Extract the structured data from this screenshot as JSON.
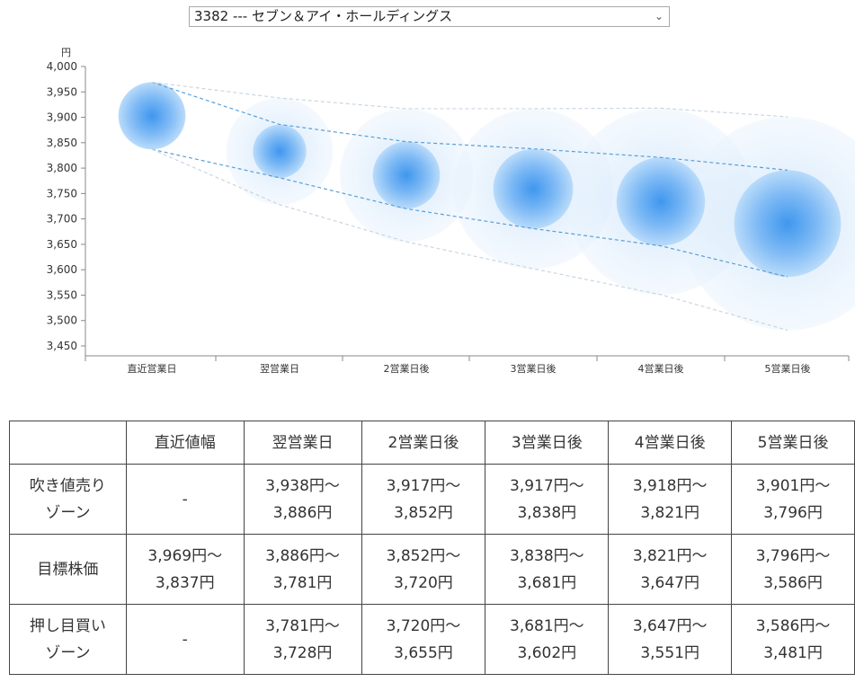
{
  "selector": {
    "selected": "3382 --- セブン＆アイ・ホールディングス"
  },
  "chart_data": {
    "type": "bubble",
    "y_unit": "円",
    "ylim": [
      3450,
      4000
    ],
    "yticks": [
      "4,000",
      "3,950",
      "3,900",
      "3,850",
      "3,800",
      "3,750",
      "3,700",
      "3,650",
      "3,600",
      "3,550",
      "3,500",
      "3,450"
    ],
    "ytick_values": [
      4000,
      3950,
      3900,
      3850,
      3800,
      3750,
      3700,
      3650,
      3600,
      3550,
      3500,
      3450
    ],
    "categories": [
      "直近営業日",
      "翌営業日",
      "2営業日後",
      "3営業日後",
      "4営業日後",
      "5営業日後"
    ],
    "center": [
      3903,
      3833,
      3786,
      3759,
      3734,
      3691
    ],
    "inner_upper": [
      3969,
      3886,
      3852,
      3838,
      3821,
      3796
    ],
    "inner_lower": [
      3837,
      3781,
      3720,
      3681,
      3647,
      3586
    ],
    "outer_upper": [
      3969,
      3938,
      3917,
      3917,
      3918,
      3901
    ],
    "outer_lower": [
      3837,
      3728,
      3655,
      3602,
      3551,
      3481
    ],
    "colors": {
      "bubble_core": "#4a9ff0",
      "bubble_halo": "#d6e9fb",
      "band_line": "#5a9fd6",
      "outer_line": "#c9d6e2"
    }
  },
  "table": {
    "headers": [
      "",
      "直近値幅",
      "翌営業日",
      "2営業日後",
      "3営業日後",
      "4営業日後",
      "5営業日後"
    ],
    "rows": [
      {
        "label": [
          "吹き値売り",
          "ゾーン"
        ],
        "cells": [
          [
            "-"
          ],
          [
            "3,938円～",
            "3,886円"
          ],
          [
            "3,917円～",
            "3,852円"
          ],
          [
            "3,917円～",
            "3,838円"
          ],
          [
            "3,918円～",
            "3,821円"
          ],
          [
            "3,901円～",
            "3,796円"
          ]
        ]
      },
      {
        "label": [
          "目標株価"
        ],
        "cells": [
          [
            "3,969円～",
            "3,837円"
          ],
          [
            "3,886円～",
            "3,781円"
          ],
          [
            "3,852円～",
            "3,720円"
          ],
          [
            "3,838円～",
            "3,681円"
          ],
          [
            "3,821円～",
            "3,647円"
          ],
          [
            "3,796円～",
            "3,586円"
          ]
        ]
      },
      {
        "label": [
          "押し目買い",
          "ゾーン"
        ],
        "cells": [
          [
            "-"
          ],
          [
            "3,781円～",
            "3,728円"
          ],
          [
            "3,720円～",
            "3,655円"
          ],
          [
            "3,681円～",
            "3,602円"
          ],
          [
            "3,647円～",
            "3,551円"
          ],
          [
            "3,586円～",
            "3,481円"
          ]
        ]
      }
    ]
  }
}
